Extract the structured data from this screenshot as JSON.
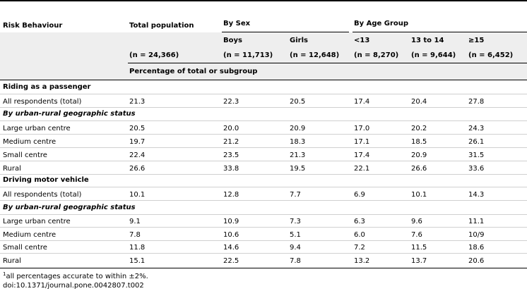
{
  "headers": {
    "risk": "Risk Behaviour",
    "total": "Total population",
    "by_sex": "By Sex",
    "by_age": "By Age Group",
    "boys": "Boys",
    "girls": "Girls",
    "age1": "<13",
    "age2": "13 to 14",
    "age3": "≥15",
    "n_total": "(n = 24,366)",
    "n_boys": "(n = 11,713)",
    "n_girls": "(n = 12,648)",
    "n_age1": "(n = 8,270)",
    "n_age2": "(n = 9,644)",
    "n_age3": "(n = 6,452)",
    "pct": "Percentage of total or subgroup"
  },
  "sections": [
    {
      "title": "Riding as a passenger",
      "all": {
        "label": "All respondents (total)",
        "values": [
          "21.3",
          "22.3",
          "20.5",
          "17.4",
          "20.4",
          "27.8"
        ]
      },
      "subtitle": "By urban-rural geographic status",
      "rows": [
        {
          "label": "Large urban centre",
          "values": [
            "20.5",
            "20.0",
            "20.9",
            "17.0",
            "20.2",
            "24.3"
          ]
        },
        {
          "label": "Medium centre",
          "values": [
            "19.7",
            "21.2",
            "18.3",
            "17.1",
            "18.5",
            "26.1"
          ]
        },
        {
          "label": "Small centre",
          "values": [
            "22.4",
            "23.5",
            "21.3",
            "17.4",
            "20.9",
            "31.5"
          ]
        },
        {
          "label": "Rural",
          "values": [
            "26.6",
            "33.8",
            "19.5",
            "22.1",
            "26.6",
            "33.6"
          ]
        }
      ]
    },
    {
      "title": "Driving motor vehicle",
      "all": {
        "label": "All respondents (total)",
        "values": [
          "10.1",
          "12.8",
          "7.7",
          "6.9",
          "10.1",
          "14.3"
        ]
      },
      "subtitle": "By urban-rural geographic status",
      "rows": [
        {
          "label": "Large urban centre",
          "values": [
            "9.1",
            "10.9",
            "7.3",
            "6.3",
            "9.6",
            "11.1"
          ]
        },
        {
          "label": "Medium centre",
          "values": [
            "7.8",
            "10.6",
            "5.1",
            "6.0",
            "7.6",
            "10/9"
          ]
        },
        {
          "label": "Small centre",
          "values": [
            "11.8",
            "14.6",
            "9.4",
            "7.2",
            "11.5",
            "18.6"
          ]
        },
        {
          "label": "Rural",
          "values": [
            "15.1",
            "22.5",
            "7.8",
            "13.2",
            "13.7",
            "20.6"
          ]
        }
      ]
    }
  ],
  "footnote": {
    "mark": "1",
    "text": "all percentages accurate to within ±2%.",
    "doi": "doi:10.1371/journal.pone.0042807.t002"
  }
}
